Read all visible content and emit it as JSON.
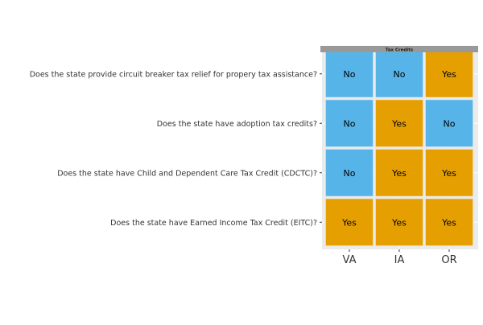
{
  "chart_data": {
    "type": "heatmap",
    "facet_title": "Tax Credits",
    "x_categories": [
      "VA",
      "IA",
      "OR"
    ],
    "y_categories": [
      "Does the state provide circuit breaker tax relief for propery tax assistance?",
      "Does the state have adoption tax credits?",
      "Does the state have Child and Dependent Care Tax Credit (CDCTC)?",
      "Does the state have Earned Income Tax Credit (EITC)?"
    ],
    "cells": [
      [
        "No",
        "No",
        "Yes"
      ],
      [
        "No",
        "Yes",
        "No"
      ],
      [
        "No",
        "Yes",
        "Yes"
      ],
      [
        "Yes",
        "Yes",
        "Yes"
      ]
    ],
    "colors": {
      "Yes": "#E69F00",
      "No": "#56B4E9",
      "strip": "#999999",
      "panel_bg": "#EBEBEB",
      "grid": "#D9D9D9",
      "text": "#000000",
      "axis_text": "#333333"
    },
    "grid": true,
    "legend": "none"
  }
}
